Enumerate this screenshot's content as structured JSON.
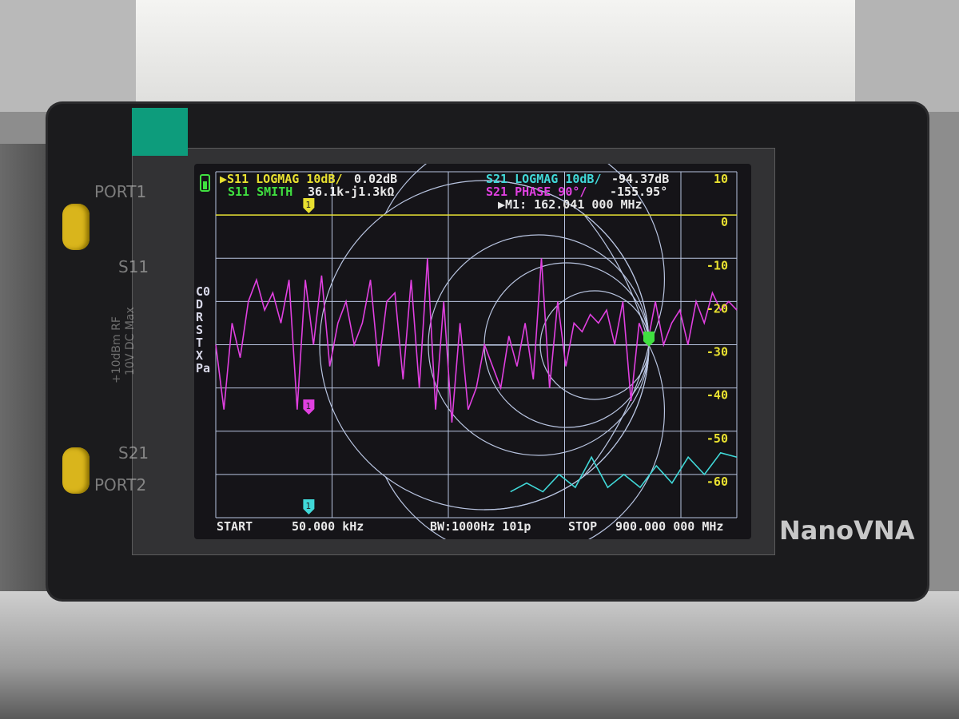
{
  "device": {
    "brand": "NanoVNA",
    "port1": "PORT1",
    "port2": "PORT2",
    "s11": "S11",
    "s21": "S21",
    "rf_rating": "+10dBm RF",
    "dc_rating": "10V DC Max"
  },
  "header": {
    "ch1_label": "▶S11 LOGMAG 10dB/",
    "ch1_value": "0.02dB",
    "ch2_label": "S11 SMITH",
    "ch2_value": "36.1k-j1.3kΩ",
    "ch3_label": "S21 LOGMAG 10dB/",
    "ch3_value": "-94.37dB",
    "ch4_label": "S21 PHASE 90°/",
    "ch4_value": "-155.95°",
    "marker": "▶M1: 162.041 000 MHz"
  },
  "side_menu": [
    "C0",
    "D",
    "R",
    "S",
    "T",
    "X",
    "Pa"
  ],
  "marker_label": "1",
  "footer": {
    "start_label": "START",
    "start_value": "50.000 kHz",
    "bw": "BW:1000Hz 101p",
    "stop_label": "STOP",
    "stop_value": "900.000 000 MHz"
  },
  "colors": {
    "s11_logmag": "#e8e030",
    "s11_smith": "#40e040",
    "s21_logmag": "#40d8d8",
    "s21_phase": "#e040e0",
    "grid": "#b8c4e0",
    "battery": "#40e040"
  },
  "chart_data": {
    "type": "line",
    "x_start_mhz": 0.05,
    "x_stop_mhz": 900,
    "ylim": [
      -70,
      10
    ],
    "y_ticks": [
      "10",
      "0",
      "-10",
      "-20",
      "-30",
      "-40",
      "-50",
      "-60"
    ],
    "grid": true,
    "series": [
      {
        "name": "S11 LOGMAG",
        "color": "#e8e030",
        "values": [
          0,
          0,
          0,
          0,
          0,
          0,
          0,
          0,
          0,
          0,
          0,
          0,
          0,
          0,
          0,
          0,
          0,
          0,
          0,
          0,
          0,
          0,
          0,
          0,
          0,
          0,
          0,
          0,
          0,
          0,
          0,
          0,
          0,
          0,
          0,
          0,
          0,
          0,
          0,
          0,
          0,
          0,
          0,
          0,
          0,
          0,
          0,
          0,
          0,
          0,
          0,
          0,
          0,
          0,
          0,
          0,
          0,
          0,
          0,
          0,
          0,
          0,
          0,
          0,
          0
        ]
      },
      {
        "name": "S21 PHASE",
        "color": "#e040e0",
        "values": [
          -30,
          -45,
          -25,
          -33,
          -20,
          -15,
          -22,
          -18,
          -25,
          -15,
          -45,
          -15,
          -30,
          -14,
          -35,
          -25,
          -20,
          -30,
          -25,
          -15,
          -35,
          -20,
          -18,
          -38,
          -15,
          -40,
          -10,
          -45,
          -20,
          -48,
          -25,
          -45,
          -40,
          -30,
          -35,
          -40,
          -28,
          -35,
          -25,
          -38,
          -10,
          -40,
          -20,
          -35,
          -25,
          -27,
          -23,
          -25,
          -22,
          -30,
          -20,
          -43,
          -25,
          -30,
          -20,
          -30,
          -25,
          -22,
          -30,
          -20,
          -25,
          -18,
          -22,
          -20,
          -22
        ]
      },
      {
        "name": "S21 LOGMAG",
        "color": "#40d8d8",
        "points": [
          [
            509,
            -64
          ],
          [
            537,
            -62
          ],
          [
            565,
            -64
          ],
          [
            593,
            -60
          ],
          [
            621,
            -63
          ],
          [
            649,
            -56
          ],
          [
            677,
            -63
          ],
          [
            705,
            -60
          ],
          [
            733,
            -63
          ],
          [
            761,
            -58
          ],
          [
            788,
            -62
          ],
          [
            816,
            -56
          ],
          [
            844,
            -60
          ],
          [
            872,
            -55
          ],
          [
            900,
            -56
          ]
        ]
      }
    ]
  }
}
